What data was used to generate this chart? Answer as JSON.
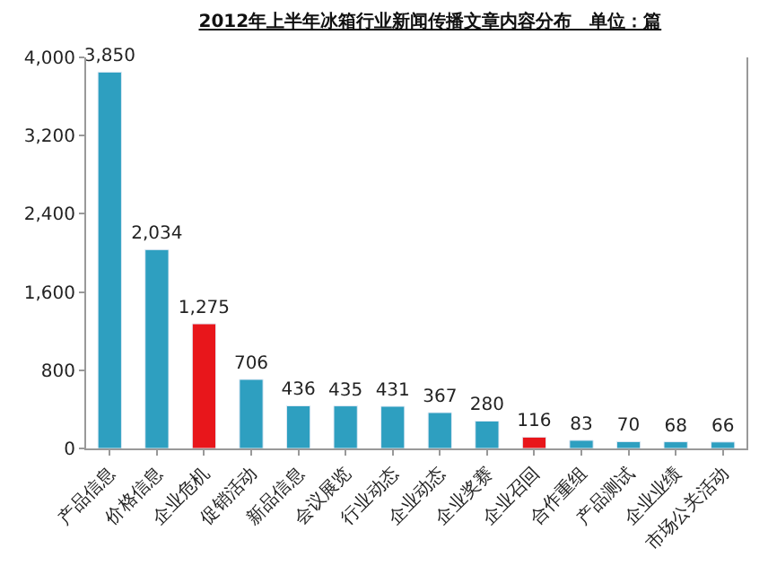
{
  "chart_data": {
    "type": "bar",
    "title": "2012年上半年冰箱行业新闻传播文章内容分布　单位：篇",
    "categories": [
      "产品信息",
      "价格信息",
      "企业危机",
      "促销活动",
      "新品信息",
      "会议展览",
      "行业动态",
      "企业动态",
      "企业奖赛",
      "企业召回",
      "合作重组",
      "产品测试",
      "企业业绩",
      "市场公关活动"
    ],
    "values": [
      3850,
      2034,
      1275,
      706,
      436,
      435,
      431,
      367,
      280,
      116,
      83,
      70,
      68,
      66
    ],
    "value_labels": [
      "3,850",
      "2,034",
      "1,275",
      "706",
      "436",
      "435",
      "431",
      "367",
      "280",
      "116",
      "83",
      "70",
      "68",
      "66"
    ],
    "colors": [
      "#2e9fc0",
      "#2e9fc0",
      "#e8161b",
      "#2e9fc0",
      "#2e9fc0",
      "#2e9fc0",
      "#2e9fc0",
      "#2e9fc0",
      "#2e9fc0",
      "#e8161b",
      "#2e9fc0",
      "#2e9fc0",
      "#2e9fc0",
      "#2e9fc0"
    ],
    "ylim": [
      0,
      4000
    ],
    "yticks": [
      {
        "value": 0,
        "label": "0"
      },
      {
        "value": 800,
        "label": "800"
      },
      {
        "value": 1600,
        "label": "1,600"
      },
      {
        "value": 2400,
        "label": "2,400"
      },
      {
        "value": 3200,
        "label": "3,200"
      },
      {
        "value": 4000,
        "label": "4,000"
      }
    ],
    "legend": false
  }
}
